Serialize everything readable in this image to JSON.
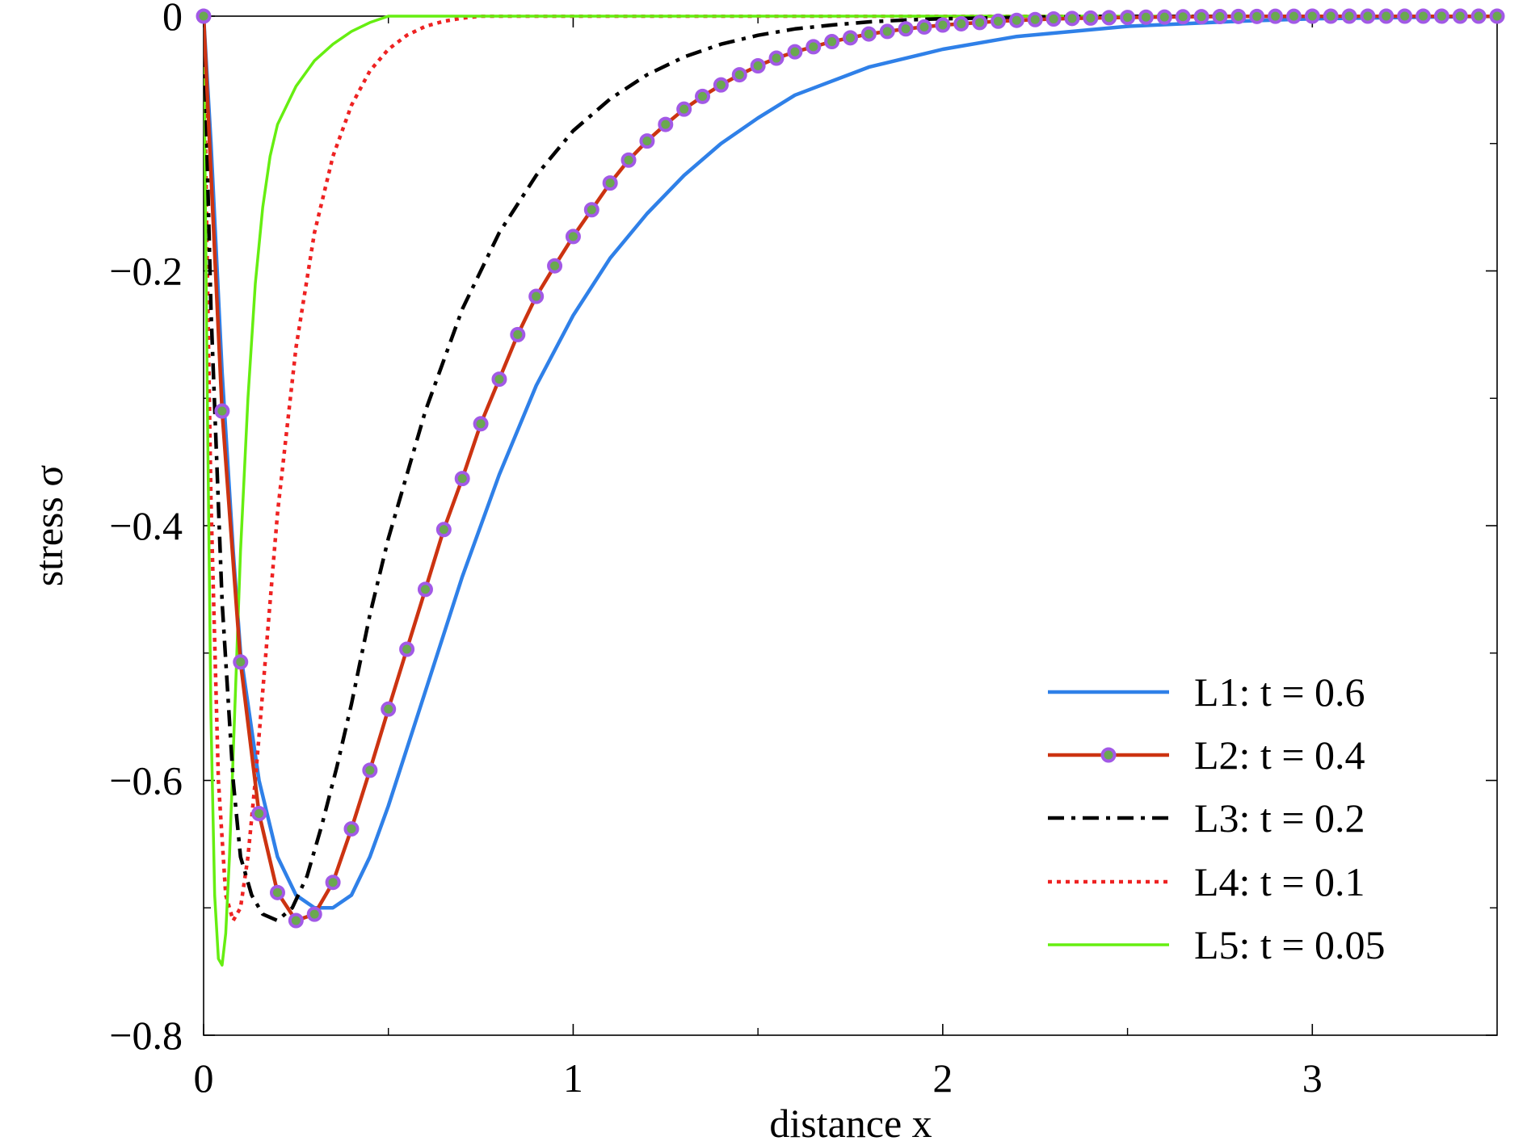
{
  "chart_data": {
    "type": "line",
    "xlabel": "distance x",
    "ylabel": "stress σ",
    "xlim": [
      0,
      3.5
    ],
    "ylim": [
      -0.8,
      0
    ],
    "x_ticks": [
      0,
      1,
      2,
      3
    ],
    "x_tick_labels": [
      "0",
      "1",
      "2",
      "3"
    ],
    "x_minor_ticks": [
      0.5,
      1.5,
      2.5
    ],
    "y_ticks": [
      0,
      -0.2,
      -0.4,
      -0.6,
      -0.8
    ],
    "y_tick_labels": [
      "0",
      "−0.2",
      "−0.4",
      "−0.6",
      "−0.8"
    ],
    "y_minor_ticks": [
      -0.1,
      -0.3,
      -0.5,
      -0.7
    ],
    "grid": false,
    "legend_position": "bottom-right",
    "series": [
      {
        "name": "L1: t = 0.6",
        "color": "#2f80e8",
        "style": "solid",
        "x": [
          0,
          0.02,
          0.05,
          0.08,
          0.1,
          0.15,
          0.2,
          0.25,
          0.3,
          0.35,
          0.4,
          0.45,
          0.5,
          0.6,
          0.7,
          0.8,
          0.9,
          1.0,
          1.1,
          1.2,
          1.3,
          1.4,
          1.5,
          1.6,
          1.8,
          2.0,
          2.2,
          2.5,
          2.8,
          3.0,
          3.5
        ],
        "y": [
          0,
          -0.1,
          -0.28,
          -0.42,
          -0.5,
          -0.6,
          -0.66,
          -0.69,
          -0.7,
          -0.7,
          -0.69,
          -0.66,
          -0.62,
          -0.53,
          -0.44,
          -0.36,
          -0.29,
          -0.235,
          -0.19,
          -0.155,
          -0.125,
          -0.1,
          -0.08,
          -0.062,
          -0.04,
          -0.026,
          -0.016,
          -0.008,
          -0.004,
          -0.002,
          0
        ]
      },
      {
        "name": "L2: t = 0.4",
        "color": "#cc3311",
        "marker_color": "#a259e6",
        "style": "solid-markers",
        "x": [
          0,
          0.05,
          0.1,
          0.15,
          0.2,
          0.25,
          0.3,
          0.35,
          0.4,
          0.45,
          0.5,
          0.55,
          0.6,
          0.65,
          0.7,
          0.75,
          0.8,
          0.85,
          0.9,
          0.95,
          1.0,
          1.05,
          1.1,
          1.15,
          1.2,
          1.25,
          1.3,
          1.35,
          1.4,
          1.45,
          1.5,
          1.55,
          1.6,
          1.65,
          1.7,
          1.75,
          1.8,
          1.85,
          1.9,
          1.95,
          2.0,
          2.05,
          2.1,
          2.15,
          2.2,
          2.25,
          2.3,
          2.35,
          2.4,
          2.45,
          2.5,
          2.55,
          2.6,
          2.65,
          2.7,
          2.75,
          2.8,
          2.85,
          2.9,
          2.95,
          3.0,
          3.05,
          3.1,
          3.15,
          3.2,
          3.25,
          3.3,
          3.35,
          3.4,
          3.45,
          3.5
        ],
        "y": [
          0,
          -0.31,
          -0.507,
          -0.626,
          -0.688,
          -0.71,
          -0.705,
          -0.68,
          -0.638,
          -0.592,
          -0.544,
          -0.497,
          -0.45,
          -0.403,
          -0.363,
          -0.32,
          -0.285,
          -0.25,
          -0.22,
          -0.196,
          -0.173,
          -0.152,
          -0.131,
          -0.113,
          -0.098,
          -0.085,
          -0.073,
          -0.063,
          -0.054,
          -0.046,
          -0.039,
          -0.033,
          -0.028,
          -0.024,
          -0.02,
          -0.017,
          -0.014,
          -0.012,
          -0.01,
          -0.0085,
          -0.007,
          -0.006,
          -0.005,
          -0.004,
          -0.0033,
          -0.0027,
          -0.0022,
          -0.0018,
          -0.0015,
          -0.0012,
          -0.001,
          -0.0008,
          -0.0007,
          -0.0005,
          -0.0004,
          -0.0003,
          -0.0002,
          -0.0002,
          -0.0001,
          -0.0001,
          0,
          0,
          0,
          0,
          0,
          0,
          0,
          0,
          0,
          0,
          0
        ]
      },
      {
        "name": "L3: t = 0.2",
        "color": "#000000",
        "style": "dashdot",
        "x": [
          0,
          0.02,
          0.05,
          0.08,
          0.1,
          0.13,
          0.16,
          0.2,
          0.24,
          0.28,
          0.32,
          0.36,
          0.4,
          0.45,
          0.5,
          0.6,
          0.7,
          0.8,
          0.9,
          1.0,
          1.1,
          1.2,
          1.3,
          1.4,
          1.5,
          1.6,
          1.7,
          1.8,
          1.9,
          2.0,
          2.2,
          2.5,
          3.0,
          3.5
        ],
        "y": [
          0,
          -0.23,
          -0.46,
          -0.6,
          -0.66,
          -0.69,
          -0.705,
          -0.71,
          -0.7,
          -0.675,
          -0.635,
          -0.59,
          -0.54,
          -0.47,
          -0.41,
          -0.31,
          -0.23,
          -0.17,
          -0.125,
          -0.09,
          -0.065,
          -0.046,
          -0.032,
          -0.022,
          -0.015,
          -0.01,
          -0.007,
          -0.0045,
          -0.003,
          -0.002,
          -0.001,
          0,
          0,
          0
        ]
      },
      {
        "name": "L4: t = 0.1",
        "color": "#ee2222",
        "style": "dotted",
        "x": [
          0,
          0.01,
          0.02,
          0.04,
          0.06,
          0.08,
          0.1,
          0.12,
          0.14,
          0.16,
          0.18,
          0.2,
          0.25,
          0.3,
          0.35,
          0.4,
          0.45,
          0.5,
          0.55,
          0.6,
          0.65,
          0.7,
          0.75,
          1.0,
          2.0,
          3.5
        ],
        "y": [
          0,
          -0.2,
          -0.38,
          -0.6,
          -0.69,
          -0.71,
          -0.7,
          -0.66,
          -0.6,
          -0.53,
          -0.46,
          -0.39,
          -0.26,
          -0.17,
          -0.11,
          -0.07,
          -0.043,
          -0.026,
          -0.015,
          -0.008,
          -0.004,
          -0.0015,
          0,
          0,
          0,
          0
        ]
      },
      {
        "name": "L5: t = 0.05",
        "color": "#66ee11",
        "style": "solid",
        "x": [
          0,
          0.01,
          0.02,
          0.03,
          0.04,
          0.05,
          0.06,
          0.07,
          0.08,
          0.1,
          0.12,
          0.14,
          0.16,
          0.18,
          0.2,
          0.25,
          0.3,
          0.35,
          0.4,
          0.45,
          0.5,
          1.0,
          2.0,
          3.5
        ],
        "y": [
          0,
          -0.3,
          -0.55,
          -0.69,
          -0.74,
          -0.745,
          -0.72,
          -0.66,
          -0.58,
          -0.42,
          -0.3,
          -0.21,
          -0.15,
          -0.11,
          -0.085,
          -0.055,
          -0.035,
          -0.022,
          -0.012,
          -0.005,
          0,
          0,
          0,
          0
        ]
      }
    ]
  }
}
